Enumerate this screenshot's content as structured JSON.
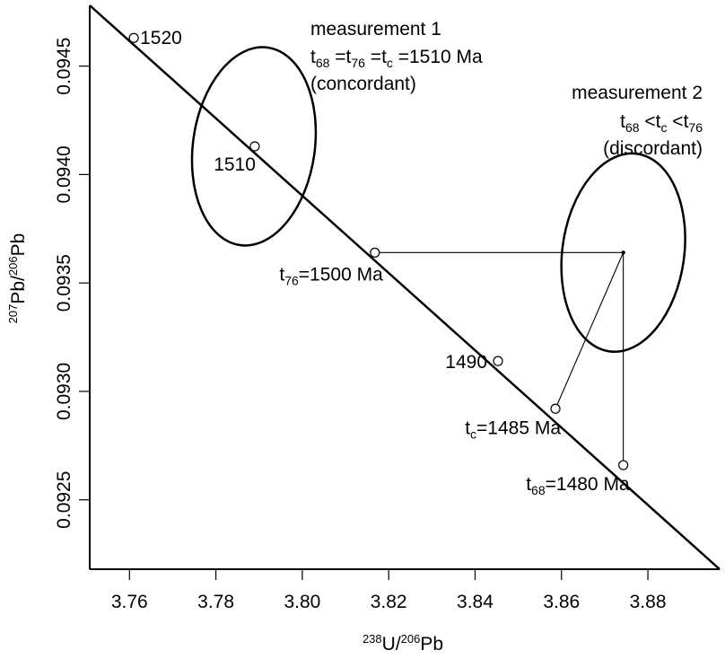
{
  "chart_data": {
    "type": "scatter",
    "title": "",
    "xlabel": {
      "sup1": "238",
      "main1": "U/",
      "sup2": "206",
      "main2": "Pb"
    },
    "ylabel": {
      "sup1": "207",
      "main1": "Pb/",
      "sup2": "206",
      "main2": "Pb"
    },
    "xlim": [
      3.7508,
      3.8966
    ],
    "ylim": [
      0.09218,
      0.09478
    ],
    "xticks": [
      3.76,
      3.78,
      3.8,
      3.82,
      3.84,
      3.86,
      3.88
    ],
    "xtick_labels": [
      "3.76",
      "3.78",
      "3.80",
      "3.82",
      "3.84",
      "3.86",
      "3.88"
    ],
    "yticks": [
      0.0945,
      0.094,
      0.0935,
      0.093,
      0.0925
    ],
    "ytick_labels": [
      "0.0945",
      "0.0940",
      "0.0935",
      "0.0930",
      "0.0925"
    ],
    "concordia": {
      "start": [
        3.7508,
        0.09478
      ],
      "end": [
        3.8966,
        0.09218
      ]
    },
    "age_markers": [
      {
        "age": 1520,
        "x": 3.761,
        "y": 0.09463,
        "label": "1520"
      },
      {
        "age": 1510,
        "x": 3.789,
        "y": 0.09413,
        "label": "1510"
      },
      {
        "age": 1500,
        "x": 3.8168,
        "y": 0.09364,
        "label_t": "t",
        "label_sub": "76",
        "label_rest": "=1500 Ma"
      },
      {
        "age": 1490,
        "x": 3.8453,
        "y": 0.09314,
        "label": "1490"
      },
      {
        "age": 1485,
        "x": 3.8586,
        "y": 0.09292,
        "label_t": "t",
        "label_sub": "c",
        "label_rest": "=1485 Ma"
      },
      {
        "age": 1480,
        "x": 3.8743,
        "y": 0.09266,
        "label_t": "t",
        "label_sub": "68",
        "label_rest": "=1480 Ma"
      }
    ],
    "measurements": [
      {
        "name": "measurement 1",
        "center": [
          3.7888,
          0.09413
        ],
        "semi_x": 0.0141,
        "semi_y": 0.00046,
        "tilt_deg": 8,
        "title": "measurement 1",
        "line2": [
          {
            "t": "t",
            "sub": "68",
            "rest": " ="
          },
          {
            "t": "t",
            "sub": "76",
            "rest": " ="
          },
          {
            "t": "t",
            "sub": "c",
            "rest": " =1510 Ma"
          }
        ],
        "line3": "(concordant)"
      },
      {
        "name": "measurement 2",
        "center": [
          3.8743,
          0.09364
        ],
        "semi_x": 0.0141,
        "semi_y": 0.00046,
        "tilt_deg": 8,
        "title": "measurement 2",
        "line2": [
          {
            "t": "t",
            "sub": "68",
            "rest": " <"
          },
          {
            "t": "t",
            "sub": "c",
            "rest": " <"
          },
          {
            "t": "t",
            "sub": "76",
            "rest": ""
          }
        ],
        "line3": "(discordant)"
      }
    ],
    "projection_lines": [
      {
        "from": [
          3.8743,
          0.09364
        ],
        "to": [
          3.8168,
          0.09364
        ]
      },
      {
        "from": [
          3.8743,
          0.09364
        ],
        "to": [
          3.8743,
          0.09266
        ]
      },
      {
        "from": [
          3.8743,
          0.09364
        ],
        "to": [
          3.8586,
          0.09292
        ]
      }
    ],
    "grid": false,
    "legend": "none"
  }
}
